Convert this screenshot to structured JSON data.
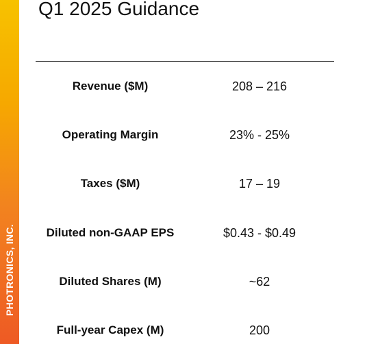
{
  "brand": {
    "company": "PHOTRONICS, INC.",
    "accent_colors": [
      "#f7c200",
      "#f2831f",
      "#ee5a24"
    ]
  },
  "slide": {
    "title": "Q1 2025 Guidance"
  },
  "guidance": {
    "rows": [
      {
        "label": "Revenue ($M)",
        "value": "208 – 216"
      },
      {
        "label": "Operating Margin",
        "value": "23% - 25%"
      },
      {
        "label": "Taxes ($M)",
        "value": "17 – 19"
      },
      {
        "label": "Diluted non-GAAP EPS",
        "value": "$0.43 - $0.49"
      },
      {
        "label": "Diluted Shares (M)",
        "value": "~62"
      },
      {
        "label": "Full-year Capex (M)",
        "value": "200"
      }
    ]
  }
}
